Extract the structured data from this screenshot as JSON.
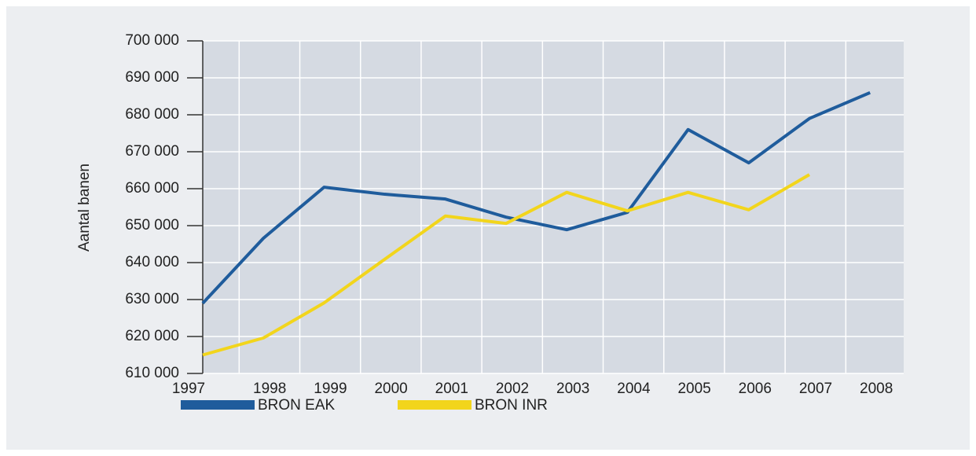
{
  "chart_data": {
    "type": "line",
    "y_label": "Aantal banen",
    "categories": [
      "1997",
      "1998",
      "1999",
      "2000",
      "2001",
      "2002",
      "2003",
      "2004",
      "2005",
      "2006",
      "2007",
      "2008"
    ],
    "series": [
      {
        "name": "BRON EAK",
        "color": "#1f5c9c",
        "values": [
          629000,
          646600,
          660400,
          658500,
          657200,
          652300,
          648900,
          653600,
          676000,
          667000,
          679000,
          686000
        ]
      },
      {
        "name": "BRON INR",
        "color": "#f2d51c",
        "values": [
          615000,
          619600,
          629100,
          640900,
          652600,
          650600,
          659000,
          654000,
          659000,
          654300,
          663800,
          null
        ]
      }
    ],
    "ylim": [
      610000,
      700000
    ],
    "yticks": [
      {
        "value": 610000,
        "label": "610 000"
      },
      {
        "value": 620000,
        "label": "620 000"
      },
      {
        "value": 630000,
        "label": "630 000"
      },
      {
        "value": 640000,
        "label": "640 000"
      },
      {
        "value": 650000,
        "label": "650 000"
      },
      {
        "value": 660000,
        "label": "660 000"
      },
      {
        "value": 670000,
        "label": "670 000"
      },
      {
        "value": 680000,
        "label": "680 000"
      },
      {
        "value": 690000,
        "label": "690 000"
      },
      {
        "value": 700000,
        "label": "700 000"
      }
    ],
    "grid": true
  }
}
